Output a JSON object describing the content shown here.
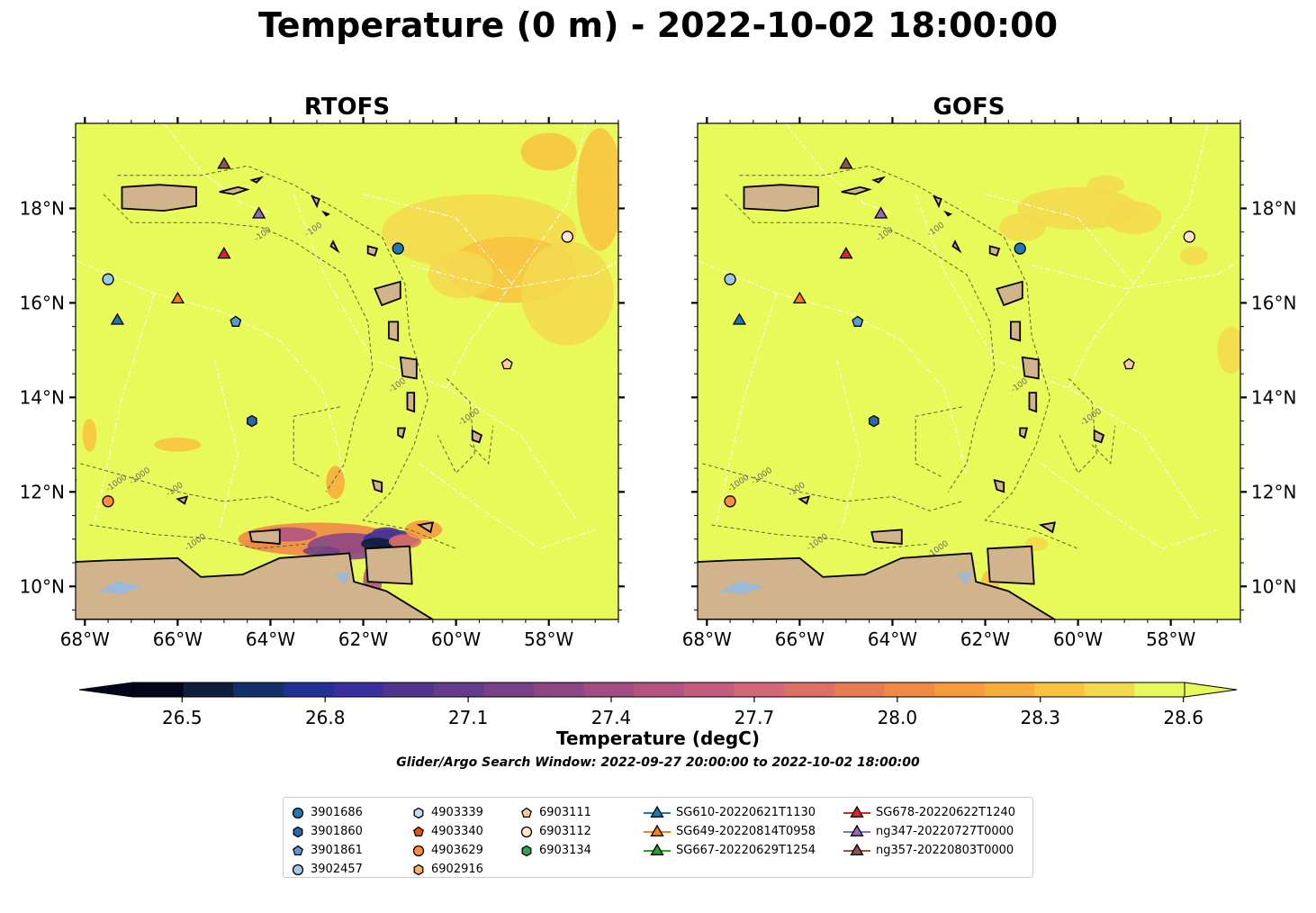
{
  "title": "Temperature (0 m) - 2022-10-02 18:00:00",
  "panels": [
    {
      "title": "RTOFS",
      "model": "rtofs"
    },
    {
      "title": "GOFS",
      "model": "gofs"
    }
  ],
  "axes": {
    "lon_range": [
      -68.2,
      -56.5
    ],
    "lat_range": [
      9.3,
      19.8
    ],
    "lon_ticks": [
      {
        "value": -68,
        "label": "68°W"
      },
      {
        "value": -66,
        "label": "66°W"
      },
      {
        "value": -64,
        "label": "64°W"
      },
      {
        "value": -62,
        "label": "62°W"
      },
      {
        "value": -60,
        "label": "60°W"
      },
      {
        "value": -58,
        "label": "58°W"
      }
    ],
    "lat_ticks": [
      {
        "value": 10,
        "label": "10°N"
      },
      {
        "value": 12,
        "label": "12°N"
      },
      {
        "value": 14,
        "label": "14°N"
      },
      {
        "value": 16,
        "label": "16°N"
      },
      {
        "value": 18,
        "label": "18°N"
      }
    ],
    "isobath_labels": [
      "-100",
      "-1000"
    ]
  },
  "colorbar": {
    "label": "Temperature (degC)",
    "min": 26.4,
    "max": 28.6,
    "step": 0.1,
    "ticks": [
      "26.5",
      "26.8",
      "27.1",
      "27.4",
      "27.7",
      "28.0",
      "28.3",
      "28.6"
    ],
    "extend": "both"
  },
  "colors": {
    "sea_max": "#e8f95a",
    "land": "#d2b48c",
    "lake": "#9db9d8",
    "contour": "#55663a",
    "eez": "#ffffff"
  },
  "search_window": "Glider/Argo Search Window: 2022-09-27 20:00:00 to 2022-10-02 18:00:00",
  "legend": {
    "columns": [
      [
        {
          "label": "3901686",
          "marker": "circle",
          "color": "#1f77b4"
        },
        {
          "label": "3901860",
          "marker": "hexagon",
          "color": "#2b6aa8"
        },
        {
          "label": "3901861",
          "marker": "pentagon",
          "color": "#5a9bd5"
        },
        {
          "label": "3902457",
          "marker": "circle",
          "color": "#9ecae9"
        }
      ],
      [
        {
          "label": "4903339",
          "marker": "hexagon",
          "color": "#c6dbef"
        },
        {
          "label": "4903340",
          "marker": "pentagon",
          "color": "#e6550d"
        },
        {
          "label": "4903629",
          "marker": "circle",
          "color": "#fd8d3c"
        },
        {
          "label": "6902916",
          "marker": "hexagon",
          "color": "#fdae6b"
        }
      ],
      [
        {
          "label": "6903111",
          "marker": "pentagon",
          "color": "#fdc9a0"
        },
        {
          "label": "6903112",
          "marker": "circle",
          "color": "#fee6ce"
        },
        {
          "label": "6903134",
          "marker": "hexagon",
          "color": "#31a354"
        }
      ],
      [
        {
          "label": "SG610-20220621T1130",
          "marker": "triangle-line",
          "color": "#1f77b4"
        },
        {
          "label": "SG649-20220814T0958",
          "marker": "triangle-line",
          "color": "#ff7f0e"
        },
        {
          "label": "SG667-20220629T1254",
          "marker": "triangle-line",
          "color": "#2ca02c"
        }
      ],
      [
        {
          "label": "SG678-20220622T1240",
          "marker": "triangle-line",
          "color": "#d62728"
        },
        {
          "label": "ng347-20220727T0000",
          "marker": "triangle-line",
          "color": "#9467bd"
        },
        {
          "label": "ng357-20220803T0000",
          "marker": "triangle-line",
          "color": "#8c564b"
        }
      ]
    ]
  },
  "observations": [
    {
      "id": "3901686",
      "lon": -61.25,
      "lat": 17.15,
      "marker": "circle",
      "color": "#1f77b4"
    },
    {
      "id": "3901860",
      "lon": -64.4,
      "lat": 13.5,
      "marker": "hexagon",
      "color": "#2b6aa8"
    },
    {
      "id": "3901861",
      "lon": -64.75,
      "lat": 15.6,
      "marker": "pentagon",
      "color": "#5a9bd5"
    },
    {
      "id": "3902457",
      "lon": -67.5,
      "lat": 16.5,
      "marker": "circle",
      "color": "#9ecae9"
    },
    {
      "id": "4903629",
      "lon": -67.5,
      "lat": 11.8,
      "marker": "circle",
      "color": "#fd8d3c"
    },
    {
      "id": "6903111",
      "lon": -58.9,
      "lat": 14.7,
      "marker": "pentagon",
      "color": "#fdc9a0"
    },
    {
      "id": "6903112",
      "lon": -57.6,
      "lat": 17.4,
      "marker": "circle",
      "color": "#fee6ce"
    },
    {
      "id": "SG610-20220621T1130",
      "lon": -67.3,
      "lat": 15.65,
      "marker": "triangle",
      "color": "#1f77b4"
    },
    {
      "id": "SG649-20220814T0958",
      "lon": -66.0,
      "lat": 16.1,
      "marker": "triangle",
      "color": "#ff7f0e"
    },
    {
      "id": "SG678-20220622T1240",
      "lon": -65.0,
      "lat": 17.05,
      "marker": "triangle",
      "color": "#d62728"
    },
    {
      "id": "ng347-20220727T0000",
      "lon": -64.25,
      "lat": 17.9,
      "marker": "triangle",
      "color": "#9467bd"
    },
    {
      "id": "ng357-20220803T0000",
      "lon": -65.0,
      "lat": 18.95,
      "marker": "triangle",
      "color": "#8c564b"
    }
  ]
}
